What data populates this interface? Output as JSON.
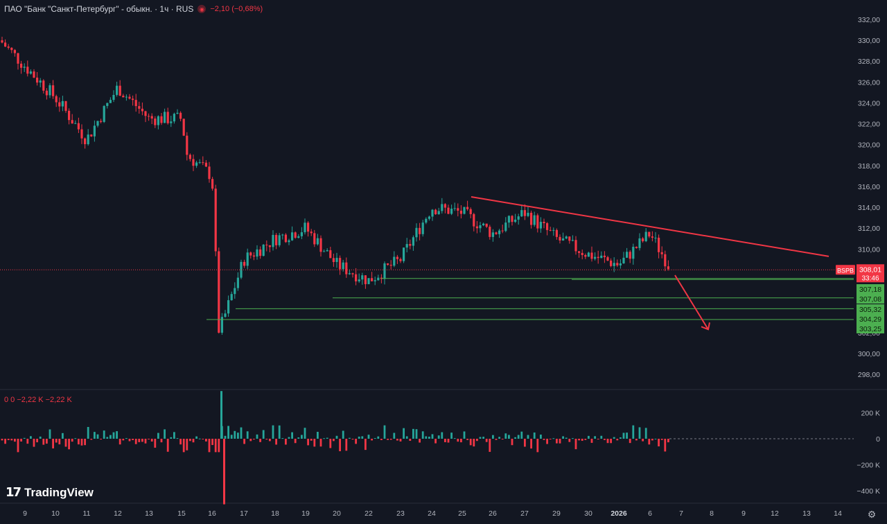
{
  "header": {
    "title": "ПАО \"Банк \"Санкт-Петербург\" - обыкн. · 1ч · RUS",
    "change": "−2,10 (−0,68%)"
  },
  "indicator": {
    "text": "0  0  −2,22 K  −2,22 K"
  },
  "branding": {
    "name": "TradingView"
  },
  "colors": {
    "background": "#131722",
    "up": "#26a69a",
    "down": "#f23645",
    "line": "#f23645",
    "level": "#4caf50"
  },
  "chart_data": {
    "type": "candlestick",
    "title": "ПАО \"Банк \"Санкт-Петербург\" - обыкн. · 1ч · RUS",
    "y_range": [
      297,
      333
    ],
    "y_ticks": [
      "332,00",
      "330,00",
      "328,00",
      "326,00",
      "324,00",
      "322,00",
      "320,00",
      "318,00",
      "316,00",
      "314,00",
      "312,00",
      "310,00",
      "308,00",
      "306,00",
      "304,00",
      "302,00",
      "300,00",
      "298,00"
    ],
    "x_ticks": [
      "9",
      "10",
      "11",
      "12",
      "13",
      "15",
      "16",
      "17",
      "18",
      "19",
      "20",
      "22",
      "23",
      "24",
      "25",
      "26",
      "27",
      "29",
      "30",
      "2026",
      "6",
      "7",
      "8",
      "9",
      "12",
      "13",
      "14"
    ],
    "price_path": [
      {
        "x": "9",
        "y": 330.0
      },
      {
        "x": "10",
        "y": 324.5
      },
      {
        "x": "11",
        "y": 320.5
      },
      {
        "x": "12",
        "y": 325.5
      },
      {
        "x": "13",
        "y": 322.5
      },
      {
        "x": "15",
        "y": 322.5
      },
      {
        "x": "15",
        "y": 319.0
      },
      {
        "x": "16",
        "y": 317.0
      },
      {
        "x": "16",
        "y": 302.0
      },
      {
        "x": "17",
        "y": 309.0
      },
      {
        "x": "18",
        "y": 311.0
      },
      {
        "x": "19",
        "y": 312.0
      },
      {
        "x": "20",
        "y": 308.5
      },
      {
        "x": "22",
        "y": 307.0
      },
      {
        "x": "23",
        "y": 309.0
      },
      {
        "x": "24",
        "y": 314.0
      },
      {
        "x": "25",
        "y": 313.5
      },
      {
        "x": "26",
        "y": 311.5
      },
      {
        "x": "27",
        "y": 313.5
      },
      {
        "x": "29",
        "y": 311.0
      },
      {
        "x": "30",
        "y": 309.5
      },
      {
        "x": "2026",
        "y": 308.5
      },
      {
        "x": "6",
        "y": 311.5
      },
      {
        "x": "7",
        "y": 308.0
      }
    ],
    "trendline": {
      "from": {
        "x": "25",
        "y": 315.0
      },
      "to": {
        "x": "14",
        "y": 309.3
      }
    },
    "arrow": {
      "from": {
        "x": "7",
        "y": 307.5
      },
      "to": {
        "x": "8",
        "y": 302.3
      }
    },
    "levels": [
      {
        "label": "307,18",
        "value": 307.18
      },
      {
        "label": "307,08",
        "value": 307.08
      },
      {
        "label": "305,32",
        "value": 305.32
      },
      {
        "label": "304,29",
        "value": 304.29
      },
      {
        "label": "303,25",
        "value": 303.25
      }
    ],
    "current": {
      "ticker": "BSPB",
      "price": "308,01",
      "timer": "33:46",
      "value": 308.01
    },
    "volume": {
      "y_range": [
        -450000,
        300000
      ],
      "y_ticks": [
        "200 K",
        "0",
        "−200 K",
        "−400 K"
      ],
      "extremes": [
        {
          "x": "16",
          "value": 320000
        },
        {
          "x": "16",
          "value": -440000
        }
      ]
    }
  }
}
